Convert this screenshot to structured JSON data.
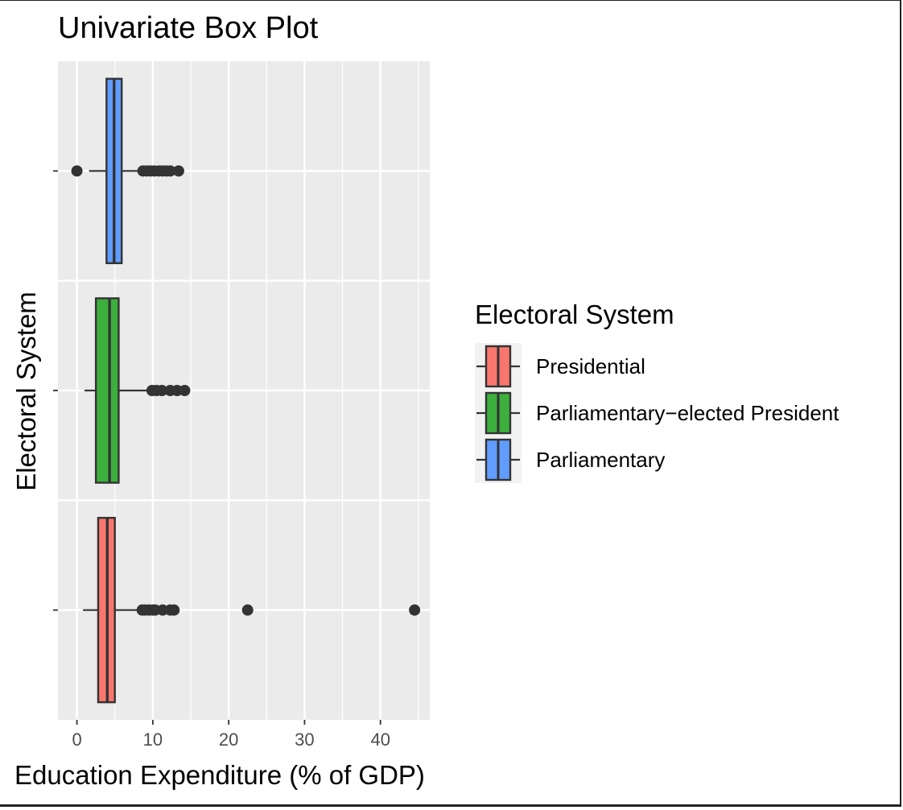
{
  "chart_data": {
    "type": "boxplot",
    "title": "Univariate Box Plot",
    "xlabel": "Education Expenditure (% of GDP)",
    "ylabel": "Electoral System",
    "xlim": [
      -2.5,
      46.5
    ],
    "xticks": [
      0,
      10,
      20,
      30,
      40
    ],
    "orientation": "horizontal",
    "grid": true,
    "legend": {
      "title": "Electoral System",
      "position": "right"
    },
    "series": [
      {
        "name": "Presidential",
        "color": "#F8766D",
        "whisker_low": 0.8,
        "q1": 2.8,
        "median": 4.0,
        "q3": 5.0,
        "whisker_high": 8.3,
        "outliers": [
          8.6,
          9.0,
          9.5,
          10.0,
          10.3,
          11.3,
          12.3,
          12.8,
          22.5,
          44.5
        ]
      },
      {
        "name": "Parliamentary−elected President",
        "color": "#3CAF3C",
        "whisker_low": 1.0,
        "q1": 2.5,
        "median": 4.3,
        "q3": 5.5,
        "whisker_high": 9.5,
        "outliers": [
          9.9,
          10.5,
          11.2,
          12.3,
          13.2,
          14.2
        ]
      },
      {
        "name": "Parliamentary",
        "color": "#619CFF",
        "whisker_low": 1.6,
        "q1": 3.9,
        "median": 4.9,
        "q3": 5.9,
        "whisker_high": 8.4,
        "outliers": [
          0.0,
          8.7,
          9.2,
          9.7,
          10.2,
          10.8,
          11.3,
          11.8,
          12.3,
          13.4
        ]
      }
    ]
  }
}
